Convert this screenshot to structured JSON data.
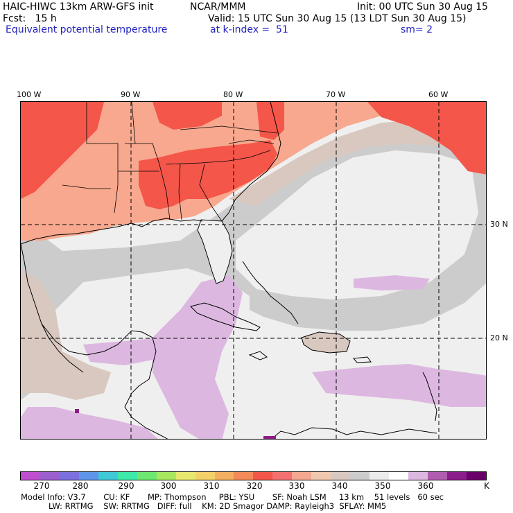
{
  "header": {
    "model": "HAIC-HIWC 13km ARW-GFS init",
    "center": "NCAR/MMM",
    "init": "Init: 00 UTC Sun 30 Aug 15",
    "fcst": "Fcst:   15 h",
    "valid": "Valid: 15 UTC Sun 30 Aug 15 (13 LDT Sun 30 Aug 15)",
    "field": "Equivalent potential temperature",
    "level": "at k-index =  51",
    "smooth": "sm= 2"
  },
  "map": {
    "lon_labels": [
      "100 W",
      "90 W",
      "80 W",
      "70 W",
      "60 W"
    ],
    "lat_labels": [
      "30 N",
      "20 N"
    ],
    "colors": {
      "warm_land": "#f7a88e",
      "hot": "#f4564a",
      "tan": "#d8c8bf",
      "gray": "#cccccc",
      "light": "#efefef",
      "lavender": "#dcb8e0",
      "outline": "#000000",
      "grid": "#000000"
    }
  },
  "colorbar": {
    "colors": [
      "#c04fd0",
      "#9b5fcf",
      "#7a70e0",
      "#5f95e8",
      "#3ec8d8",
      "#3de8a8",
      "#6ee870",
      "#a8e860",
      "#e8e870",
      "#f4d068",
      "#f4b060",
      "#f48a58",
      "#f4564a",
      "#f47070",
      "#f4a890",
      "#f0c8b0",
      "#d8c8bf",
      "#cccccc",
      "#ececec",
      "#ffffff",
      "#dcb8e0",
      "#b05cb0",
      "#8c1c8c",
      "#6a006a"
    ],
    "ticks": [
      "270",
      "280",
      "290",
      "300",
      "310",
      "320",
      "330",
      "340",
      "350",
      "360"
    ],
    "unit": "K"
  },
  "footer": {
    "line1": "Model Info: V3.7       CU: KF       MP: Thompson     PBL: YSU       SF: Noah LSM     13 km    51 levels   60 sec",
    "line2": "LW: RRTMG    SW: RRTMG   DIFF: full    KM: 2D Smagor DAMP: Rayleigh3  SFLAY: MM5"
  }
}
